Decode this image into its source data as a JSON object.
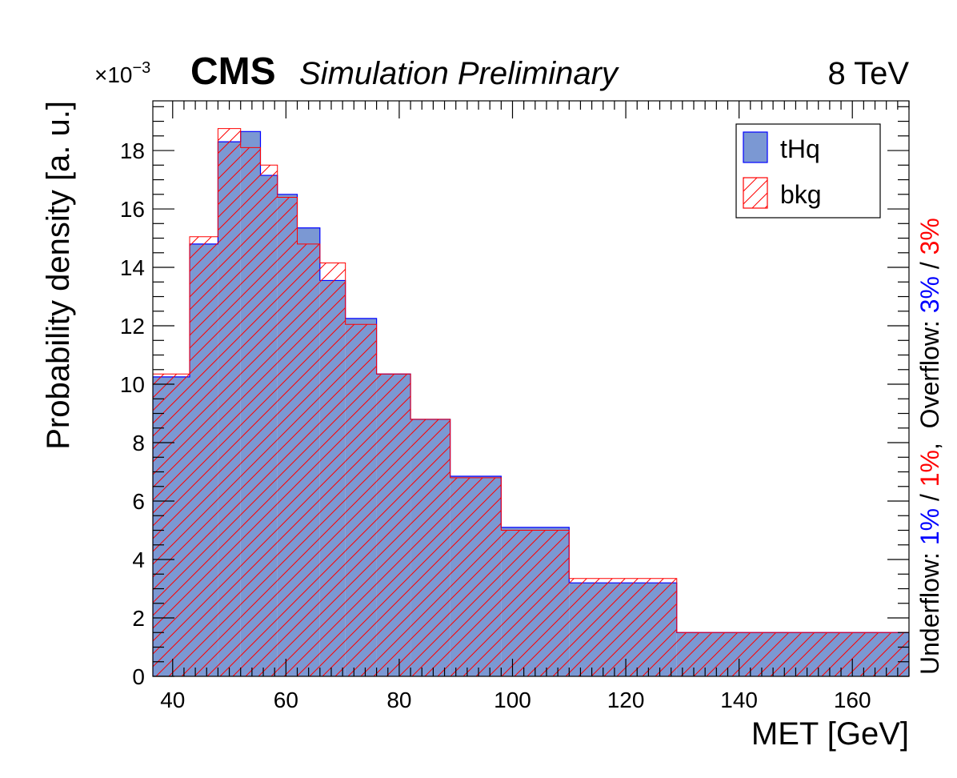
{
  "header": {
    "cms": "CMS",
    "subtitle": "Simulation Preliminary",
    "energy": "8 TeV",
    "exponent_times": "×10",
    "exponent_power": "−3"
  },
  "side_text": {
    "underflow_label": "Underflow: ",
    "underflow_sig": "1%",
    "sep1": " / ",
    "underflow_bkg": "1%",
    "comma": ",  ",
    "overflow_label": "Overflow: ",
    "overflow_sig": "3%",
    "sep2": " / ",
    "overflow_bkg": "3%"
  },
  "colors": {
    "signal_fill": "#7b98d3",
    "signal_line": "#0000ff",
    "background_line": "#ff0000",
    "underflow_sig_color": "#0000ff",
    "underflow_bkg_color": "#ff0000"
  },
  "chart_data": {
    "type": "histogram",
    "xlabel": "MET [GeV]",
    "ylabel": "Probability density [a. u.]",
    "xlim": [
      36.5,
      170
    ],
    "ylim": [
      0,
      19.7
    ],
    "y_scale_note": "×10^-3",
    "x_ticks": [
      40,
      60,
      80,
      100,
      120,
      140,
      160
    ],
    "y_ticks": [
      0,
      2,
      4,
      6,
      8,
      10,
      12,
      14,
      16,
      18
    ],
    "bin_edges": [
      36.5,
      43,
      48,
      52,
      55.5,
      58.5,
      62,
      66,
      70.5,
      76,
      82,
      89,
      98,
      110,
      129,
      170
    ],
    "series": [
      {
        "name": "tHq",
        "style": "filled",
        "values": [
          10.25,
          14.8,
          18.3,
          18.65,
          17.15,
          16.5,
          15.35,
          13.55,
          12.25,
          10.35,
          8.8,
          6.85,
          5.1,
          3.2,
          1.5
        ]
      },
      {
        "name": "bkg",
        "style": "hatched",
        "values": [
          10.35,
          15.05,
          18.75,
          18.1,
          17.5,
          16.4,
          14.8,
          14.15,
          12.05,
          10.35,
          8.8,
          6.8,
          5.0,
          3.35,
          1.5
        ]
      }
    ],
    "legend": {
      "position": "top-right",
      "entries": [
        "tHq",
        "bkg"
      ]
    }
  }
}
